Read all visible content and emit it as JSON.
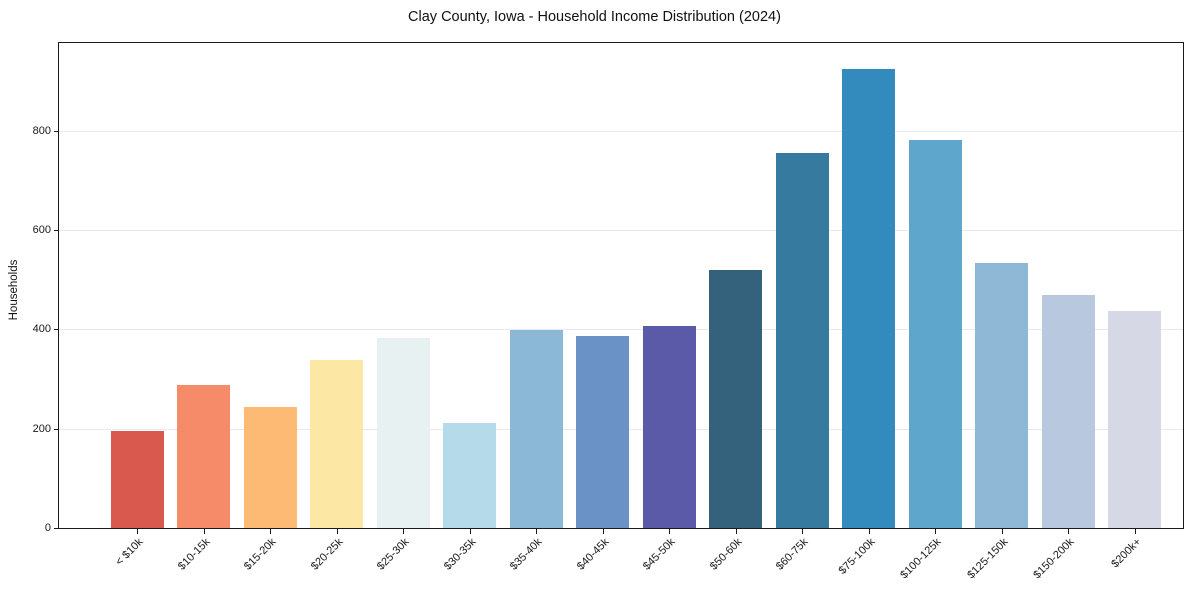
{
  "title": "Clay County, Iowa - Household Income Distribution (2024)",
  "chart_data": {
    "type": "bar",
    "title": "Clay County, Iowa - Household Income Distribution (2024)",
    "xlabel": "",
    "ylabel": "Households",
    "categories": [
      "< $10k",
      "$10-15k",
      "$15-20k",
      "$20-25k",
      "$25-30k",
      "$30-35k",
      "$35-40k",
      "$40-45k",
      "$45-50k",
      "$50-60k",
      "$60-75k",
      "$75-100k",
      "$100-125k",
      "$125-150k",
      "$150-200k",
      "$200k+"
    ],
    "values": [
      195,
      288,
      243,
      338,
      383,
      211,
      398,
      387,
      406,
      520,
      756,
      925,
      781,
      533,
      470,
      437
    ],
    "bar_colors": [
      "#d9594f",
      "#f58b68",
      "#fdba74",
      "#fce8a4",
      "#e8f1f2",
      "#b5dbeb",
      "#8cb8d8",
      "#6b92c7",
      "#5a5aa8",
      "#34617c",
      "#377a9f",
      "#338abd",
      "#5fa6cc",
      "#8fb7d6",
      "#b8c8de",
      "#d6d8e5"
    ],
    "yticks": [
      0,
      200,
      400,
      600,
      800
    ],
    "ylim": [
      0,
      977
    ],
    "grid": "horizontal",
    "gridline_color": "#e9e9f0",
    "spine_color": "#1a1a1a",
    "background_color": "#ffffff",
    "legend": "none"
  }
}
